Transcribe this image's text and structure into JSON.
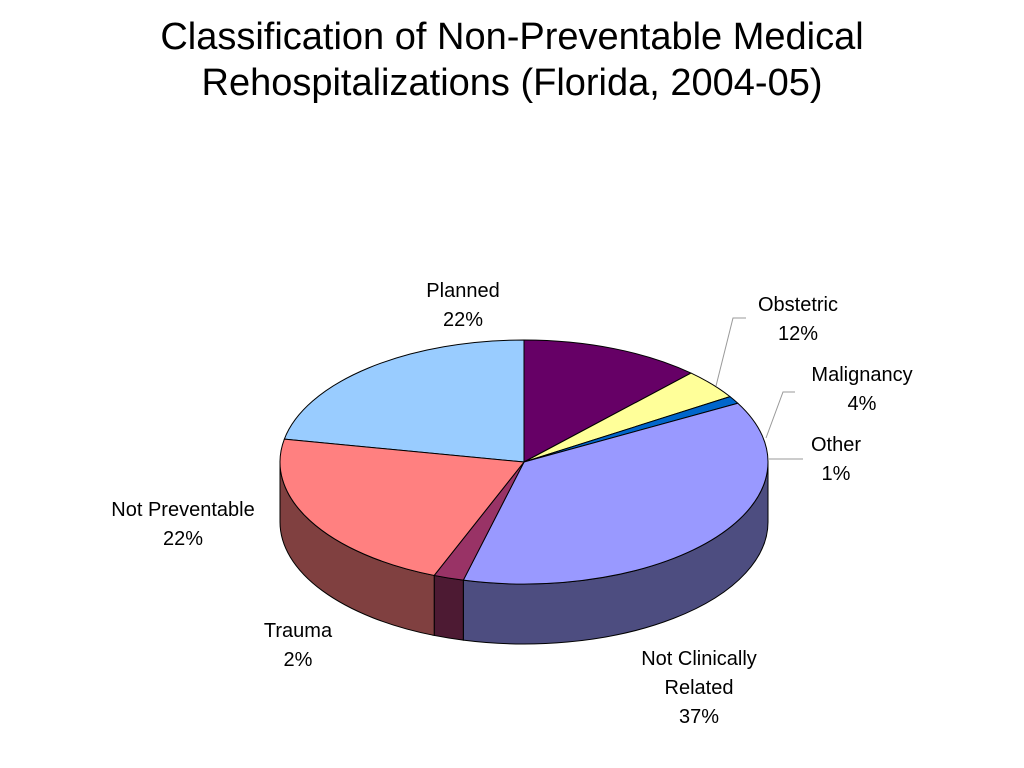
{
  "title_lines": [
    "Classification of Non-Preventable Medical",
    "Rehospitalizations (Florida, 2004-05)"
  ],
  "chart_data": {
    "type": "pie",
    "title": "Classification of Non-Preventable Medical Rehospitalizations (Florida, 2004-05)",
    "three_d": true,
    "slices": [
      {
        "label": "Planned",
        "label_lines": [
          "Planned"
        ],
        "percent_label": "22%",
        "value": 22,
        "color": "#99ccff",
        "side_color": "#5c7a99"
      },
      {
        "label": "Obstetric",
        "label_lines": [
          "Obstetric"
        ],
        "percent_label": "12%",
        "value": 12,
        "color": "#660066",
        "side_color": "#3d003d"
      },
      {
        "label": "Malignancy",
        "label_lines": [
          "Malignancy"
        ],
        "percent_label": "4%",
        "value": 4,
        "color": "#ffff99",
        "side_color": "#99995c"
      },
      {
        "label": "Other",
        "label_lines": [
          "Other"
        ],
        "percent_label": "1%",
        "value": 1,
        "color": "#0066cc",
        "side_color": "#003d7a"
      },
      {
        "label": "Not Clinically Related",
        "label_lines": [
          "Not Clinically",
          "Related"
        ],
        "percent_label": "37%",
        "value": 37,
        "color": "#9999ff",
        "side_color": "#4d4d80"
      },
      {
        "label": "Trauma",
        "label_lines": [
          "Trauma"
        ],
        "percent_label": "2%",
        "value": 2,
        "color": "#993366",
        "side_color": "#4d1a33"
      },
      {
        "label": "Not Preventable",
        "label_lines": [
          "Not Preventable"
        ],
        "percent_label": "22%",
        "value": 22,
        "color": "#ff8080",
        "side_color": "#804040"
      }
    ]
  }
}
